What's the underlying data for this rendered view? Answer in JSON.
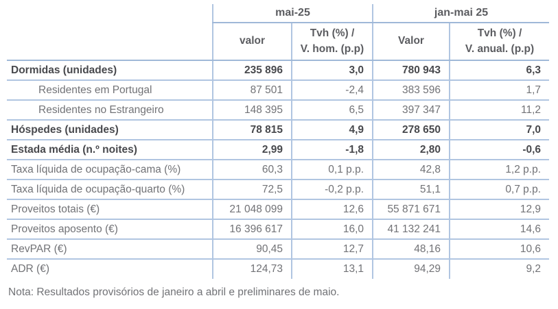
{
  "table": {
    "groups": [
      {
        "label": "mai-25",
        "sub": [
          "valor",
          "Tvh (%) /\nV. hom. (p.p)"
        ]
      },
      {
        "label": "jan-mai 25",
        "sub": [
          "Valor",
          "Tvh (%) /\nV. anual. (p.p)"
        ]
      }
    ],
    "rows": [
      {
        "label": "Dormidas (unidades)",
        "bold": true,
        "indent": false,
        "values": [
          "235 896",
          "3,0",
          "780 943",
          "6,3"
        ]
      },
      {
        "label": "Residentes em Portugal",
        "bold": false,
        "indent": true,
        "values": [
          "87 501",
          "-2,4",
          "383 596",
          "1,7"
        ]
      },
      {
        "label": "Residentes no Estrangeiro",
        "bold": false,
        "indent": true,
        "values": [
          "148 395",
          "6,5",
          "397 347",
          "11,2"
        ]
      },
      {
        "label": "Hóspedes (unidades)",
        "bold": true,
        "indent": false,
        "values": [
          "78 815",
          "4,9",
          "278 650",
          "7,0"
        ]
      },
      {
        "label": "Estada média (n.º noites)",
        "bold": true,
        "indent": false,
        "values": [
          "2,99",
          "-1,8",
          "2,80",
          "-0,6"
        ]
      },
      {
        "label": "Taxa líquida de ocupação-cama (%)",
        "bold": false,
        "indent": false,
        "values": [
          "60,3",
          "0,1 p.p.",
          "42,8",
          "1,2 p.p."
        ]
      },
      {
        "label": "Taxa líquida de ocupação-quarto (%)",
        "bold": false,
        "indent": false,
        "values": [
          "72,5",
          "-0,2 p.p.",
          "51,1",
          "0,7 p.p."
        ]
      },
      {
        "label": "Proveitos totais (€)",
        "bold": false,
        "indent": false,
        "values": [
          "21 048 099",
          "12,6",
          "55 871 671",
          "12,9"
        ]
      },
      {
        "label": "Proveitos aposento (€)",
        "bold": false,
        "indent": false,
        "values": [
          "16 396 617",
          "16,0",
          "41 132 241",
          "14,6"
        ]
      },
      {
        "label": "RevPAR (€)",
        "bold": false,
        "indent": false,
        "values": [
          "90,45",
          "12,7",
          "48,16",
          "10,6"
        ]
      },
      {
        "label": "ADR (€)",
        "bold": false,
        "indent": false,
        "values": [
          "124,73",
          "13,1",
          "94,29",
          "9,2"
        ]
      }
    ],
    "note": "Nota: Resultados provisórios de janeiro a abril e preliminares de maio."
  },
  "colors": {
    "border": "#b0c5e1",
    "border-strong": "#9fb8d8",
    "text": "#717276",
    "text-bold": "#48494d",
    "text-header": "#5b5c60",
    "bg": "#ffffff"
  }
}
